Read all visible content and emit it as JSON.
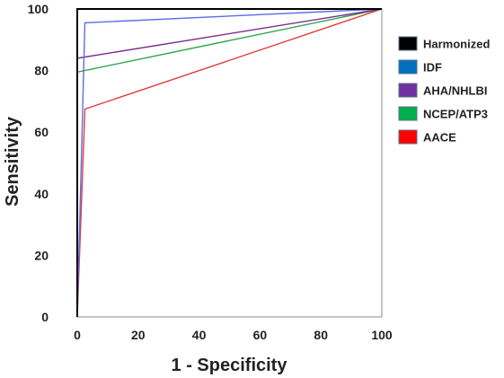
{
  "chart_data": {
    "type": "line",
    "xlabel": "1 - Specificity",
    "ylabel": "Sensitivity",
    "xlim": [
      0,
      100
    ],
    "ylim": [
      0,
      100
    ],
    "x_ticks": [
      0,
      20,
      40,
      60,
      80,
      100
    ],
    "y_ticks": [
      0,
      20,
      40,
      60,
      80,
      100
    ],
    "grid": false,
    "legend_position": "right",
    "series": [
      {
        "name": "Harmonized",
        "color": "#000000",
        "x": [
          0,
          0,
          100
        ],
        "y": [
          0,
          100,
          100
        ]
      },
      {
        "name": "IDF",
        "color": "#0070c0",
        "line_color": "#5b6ee8",
        "x": [
          0,
          2.5,
          100
        ],
        "y": [
          0,
          95.5,
          100
        ]
      },
      {
        "name": "AHA/NHLBI",
        "color": "#7030a0",
        "line_color": "#7b2d8e",
        "x": [
          0,
          0,
          100
        ],
        "y": [
          0,
          84,
          100
        ]
      },
      {
        "name": "NCEP/ATP3",
        "color": "#00b050",
        "line_color": "#2aa84a",
        "x": [
          0,
          0,
          100
        ],
        "y": [
          0,
          79.5,
          100
        ]
      },
      {
        "name": "AACE",
        "color": "#ff0000",
        "line_color": "#e23b3b",
        "x": [
          0,
          2.5,
          100
        ],
        "y": [
          0,
          67.5,
          100
        ]
      }
    ]
  }
}
